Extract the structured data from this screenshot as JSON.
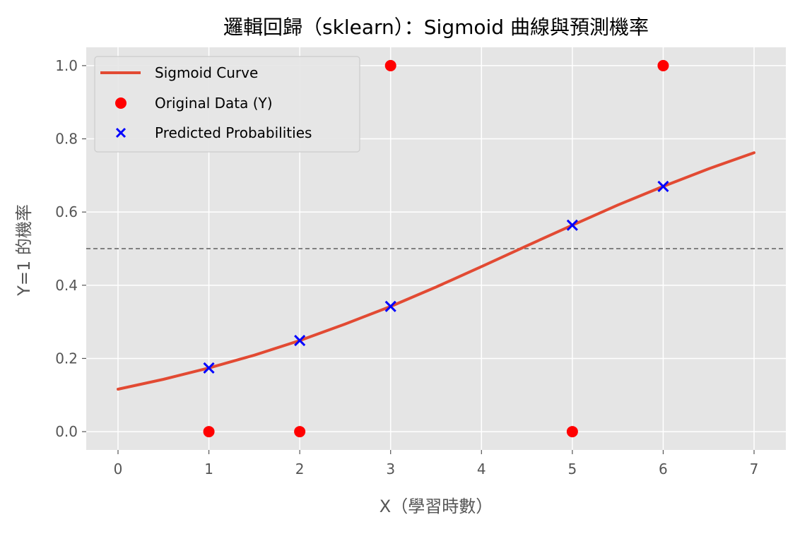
{
  "chart_data": {
    "type": "scatter",
    "title": "邏輯回歸（sklearn）：Sigmoid 曲線與預測機率",
    "xlabel": "X（學習時數）",
    "ylabel": "Y=1 的機率",
    "xlim": [
      -0.35,
      7.35
    ],
    "ylim": [
      -0.05,
      1.05
    ],
    "x_ticks": [
      0,
      1,
      2,
      3,
      4,
      5,
      6,
      7
    ],
    "y_ticks": [
      0.0,
      0.2,
      0.4,
      0.6,
      0.8,
      1.0
    ],
    "x_tick_labels": [
      "0",
      "1",
      "2",
      "3",
      "4",
      "5",
      "6",
      "7"
    ],
    "y_tick_labels": [
      "0.0",
      "0.2",
      "0.4",
      "0.6",
      "0.8",
      "1.0"
    ],
    "grid": true,
    "legend_position": "top-left",
    "threshold_line": {
      "y": 0.5,
      "style": "dashed",
      "color": "#808080"
    },
    "series": [
      {
        "name": "Sigmoid Curve",
        "kind": "line",
        "color": "#e24a33",
        "x": [
          0,
          0.5,
          1,
          1.5,
          2,
          2.5,
          3,
          3.5,
          4,
          4.5,
          5,
          5.5,
          6,
          6.5,
          7
        ],
        "y": [
          0.116,
          0.143,
          0.174,
          0.209,
          0.249,
          0.294,
          0.342,
          0.395,
          0.451,
          0.508,
          0.564,
          0.619,
          0.67,
          0.718,
          0.762
        ]
      },
      {
        "name": "Original Data (Y)",
        "kind": "scatter",
        "marker": "circle",
        "color": "#ff0000",
        "x": [
          1,
          2,
          3,
          5,
          6
        ],
        "y": [
          0,
          0,
          1,
          0,
          1
        ]
      },
      {
        "name": "Predicted Probabilities",
        "kind": "scatter",
        "marker": "x",
        "color": "#0000ff",
        "x": [
          1,
          2,
          3,
          5,
          6
        ],
        "y": [
          0.174,
          0.249,
          0.342,
          0.564,
          0.67
        ]
      }
    ]
  }
}
